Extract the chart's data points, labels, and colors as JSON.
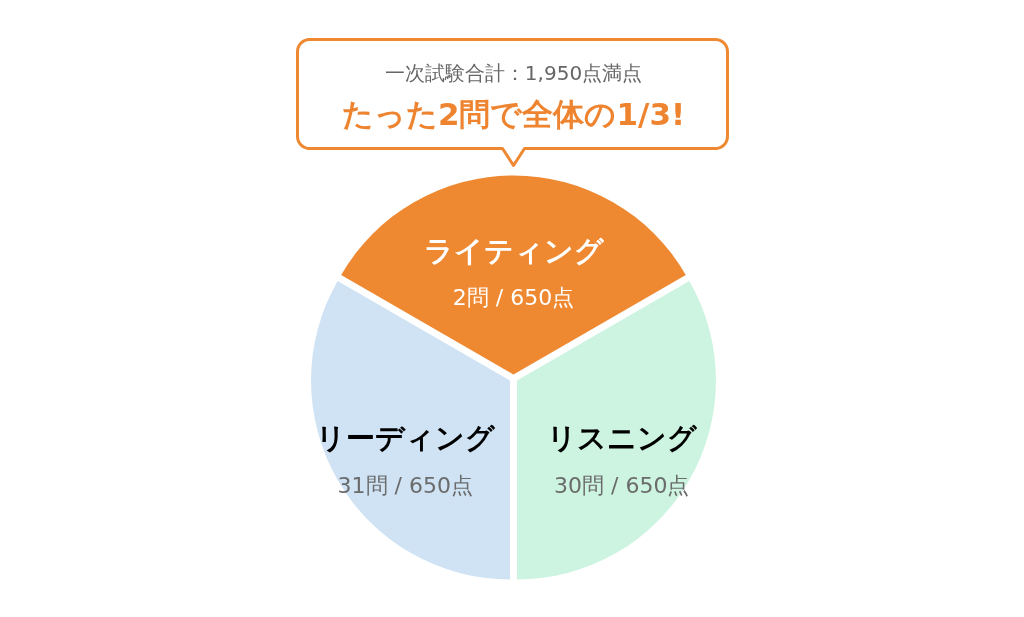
{
  "chart_data": {
    "type": "pie",
    "title": "一次試験合計：1,950点満点",
    "subtitle": "たった2問で全体の1/3!",
    "categories": [
      "ライティング",
      "リーディング",
      "リスニング"
    ],
    "values": [
      650,
      650,
      650
    ],
    "colors": [
      "#ee8932",
      "#cfe3f4",
      "#cdf3e1"
    ],
    "value_labels": [
      "2問 / 650点",
      "31問 / 650点",
      "30問 / 650点"
    ]
  }
}
